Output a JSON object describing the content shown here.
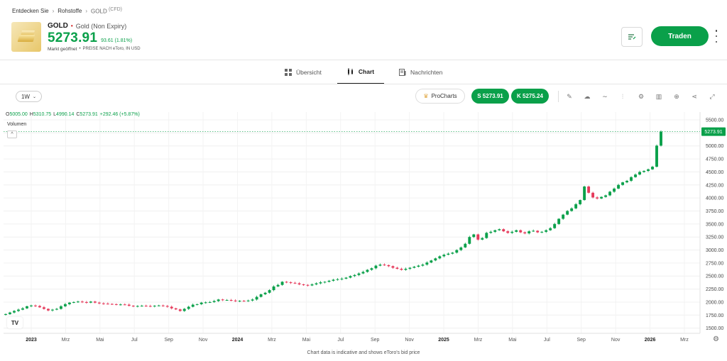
{
  "breadcrumb": {
    "item1": "Entdecken Sie",
    "item2": "Rohstoffe",
    "item3": "GOLD",
    "item3_suffix": "(CFD)"
  },
  "asset": {
    "symbol": "GOLD",
    "full_name": "Gold (Non Expiry)",
    "price": "5273.91",
    "change": "93.61 (1.81%)",
    "market_status": "Markt geöffnet",
    "price_note": "PREISE NACH eToro, IN USD"
  },
  "actions": {
    "trade_label": "Traden"
  },
  "tabs": [
    {
      "label": "Übersicht",
      "icon": "grid-icon"
    },
    {
      "label": "Chart",
      "icon": "candles-icon"
    },
    {
      "label": "Nachrichten",
      "icon": "news-icon"
    }
  ],
  "toolbar": {
    "timeframe": "1W",
    "pro_label": "ProCharts",
    "sell_label": "S 5273.91",
    "buy_label": "K 5275.24",
    "icons": [
      "pencil-icon",
      "cloud-icon",
      "line-icon",
      "indicators-icon",
      "gear-icon",
      "bar-chart-icon",
      "plus-circle-icon",
      "share-icon",
      "expand-icon"
    ]
  },
  "ohlc": {
    "o_label": "O",
    "o": "5005.00",
    "h_label": "H",
    "h": "5310.75",
    "l_label": "L",
    "l": "4990.14",
    "c_label": "C",
    "c": "5273.91",
    "chg": "+292.46 (+5.87%)"
  },
  "volume_label": "Volumen",
  "volume_toggle": "^",
  "tv_logo": "TV",
  "footer_note": "Chart data is indicative and shows eToro's bid price",
  "colors": {
    "up": "#0aa04a",
    "down": "#e5395a",
    "accent": "#0aa04a"
  },
  "chart_data": {
    "type": "candlestick",
    "timeframe": "1W",
    "y_ticks": [
      "5500.00",
      "5250.00",
      "5000.00",
      "4750.00",
      "4500.00",
      "4250.00",
      "4000.00",
      "3750.00",
      "3500.00",
      "3250.00",
      "3000.00",
      "2750.00",
      "2500.00",
      "2250.00",
      "2000.00",
      "1750.00",
      "1500.00"
    ],
    "ylim": [
      1400,
      5650
    ],
    "last_price_label": "5273.91",
    "last_price": 5273.91,
    "x_ticks": [
      "2023",
      "Mrz",
      "Mai",
      "Jul",
      "Sep",
      "Nov",
      "2024",
      "Mrz",
      "Mai",
      "Jul",
      "Sep",
      "Nov",
      "2025",
      "Mrz",
      "Mai",
      "Jul",
      "Sep",
      "Nov",
      "2026",
      "Mrz"
    ],
    "bold_x_ticks": [
      "2023",
      "2024",
      "2025",
      "2026"
    ],
    "close_path": [
      1770,
      1800,
      1830,
      1855,
      1880,
      1920,
      1935,
      1925,
      1900,
      1870,
      1840,
      1855,
      1870,
      1920,
      1960,
      1990,
      2000,
      2010,
      2000,
      1990,
      2010,
      1990,
      1975,
      1970,
      1965,
      1960,
      1955,
      1955,
      1950,
      1930,
      1920,
      1925,
      1930,
      1925,
      1920,
      1930,
      1935,
      1925,
      1910,
      1880,
      1860,
      1830,
      1870,
      1910,
      1950,
      1960,
      1990,
      1995,
      2000,
      2020,
      2050,
      2040,
      2040,
      2030,
      2020,
      2025,
      2020,
      2030,
      2050,
      2100,
      2150,
      2180,
      2230,
      2300,
      2330,
      2390,
      2380,
      2370,
      2360,
      2340,
      2330,
      2320,
      2340,
      2360,
      2380,
      2390,
      2410,
      2430,
      2440,
      2450,
      2470,
      2500,
      2520,
      2550,
      2580,
      2620,
      2650,
      2700,
      2720,
      2710,
      2690,
      2660,
      2640,
      2620,
      2640,
      2660,
      2680,
      2700,
      2720,
      2760,
      2800,
      2840,
      2880,
      2910,
      2930,
      2950,
      3000,
      3050,
      3120,
      3250,
      3300,
      3200,
      3230,
      3330,
      3350,
      3380,
      3400,
      3360,
      3330,
      3350,
      3380,
      3340,
      3320,
      3360,
      3370,
      3340,
      3350,
      3380,
      3420,
      3500,
      3600,
      3680,
      3750,
      3800,
      3880,
      3960,
      4220,
      4100,
      4010,
      3990,
      4020,
      4050,
      4120,
      4180,
      4250,
      4300,
      4330,
      4400,
      4450,
      4500,
      4520,
      4550,
      4600,
      5005,
      5273.91
    ]
  }
}
